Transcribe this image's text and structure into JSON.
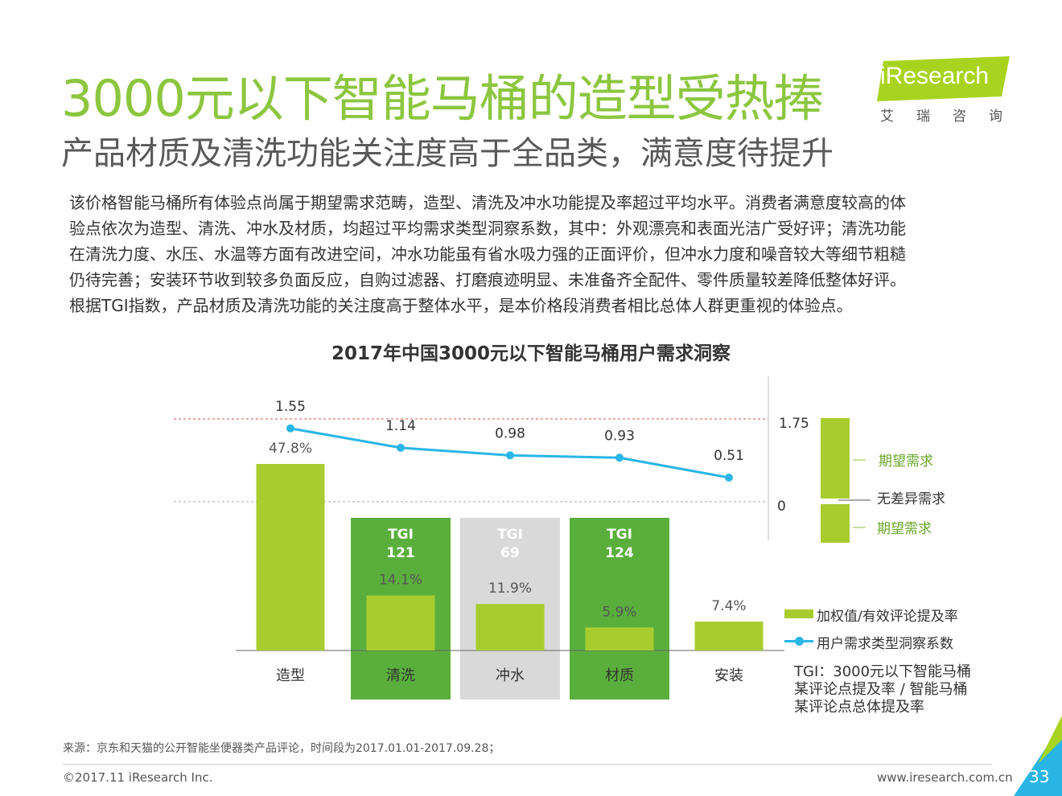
{
  "header": {
    "title": "3000元以下智能马桶的造型受热捧",
    "subtitle": "产品材质及清洗功能关注度高于全品类，满意度待提升",
    "logo_brand": "iResearch",
    "logo_cn": "艾瑞咨询"
  },
  "description": [
    "该价格智能马桶所有体验点尚属于期望需求范畴，造型、清洗及冲水功能提及率超过平均水平。消费者满意度较高的体",
    "验点依次为造型、清洗、冲水及材质，均超过平均需求类型洞察系数，其中：外观漂亮和表面光洁广受好评；清洗功能",
    "在清洗力度、水压、水温等方面有改进空间，冲水功能虽有省水吸力强的正面评价，但冲水力度和噪音较大等细节粗糙",
    "仍待完善；安装环节收到较多负面反应，自购过滤器、打磨痕迹明显、未准备齐全配件、零件质量较差降低整体好评。",
    "根据TGI指数，产品材质及清洗功能的关注度高于整体水平，是本价格段消费者相比总体人群更重视的体验点。"
  ],
  "chart_data": {
    "type": "bar",
    "title": "2017年中国3000元以下智能马桶用户需求洞察",
    "categories": [
      "造型",
      "清洗",
      "冲水",
      "材质",
      "安装"
    ],
    "series": [
      {
        "name": "加权值/有效评论提及率",
        "type": "bar",
        "values": [
          47.8,
          14.1,
          11.9,
          5.9,
          7.4
        ],
        "labels": [
          "47.8%",
          "14.1%",
          "11.9%",
          "5.9%",
          "7.4%"
        ]
      },
      {
        "name": "用户需求类型洞察系数",
        "type": "line",
        "values": [
          1.55,
          1.14,
          0.98,
          0.93,
          0.51
        ],
        "labels": [
          "1.55",
          "1.14",
          "0.98",
          "0.93",
          "0.51"
        ]
      }
    ],
    "tgi": [
      {
        "category": "清洗",
        "label": "TGI",
        "value": "121",
        "color": "#5aaf3c"
      },
      {
        "category": "冲水",
        "label": "TGI",
        "value": "69",
        "color": "#d9d9d9"
      },
      {
        "category": "材质",
        "label": "TGI",
        "value": "124",
        "color": "#5aaf3c"
      }
    ],
    "reference_lines": [
      {
        "value": 1.75,
        "label": "1.75",
        "style": "dashed",
        "color": "#e05050"
      },
      {
        "value": 0,
        "label": "0",
        "style": "dashed",
        "color": "#aaaaaa"
      }
    ],
    "scale_legend": {
      "upper": "期望需求",
      "middle": "无差异需求",
      "lower": "期望需求"
    },
    "ylim_bar": [
      0,
      60
    ],
    "ylim_line": [
      0,
      1.75
    ],
    "note": [
      "TGI：3000元以下智能马桶",
      "某评论点提及率 / 智能马桶",
      "某评论点总体提及率"
    ]
  },
  "colors": {
    "title_green": "#8cc63f",
    "bar_green": "#a8cc2e",
    "tgi_green": "#5aaf3c",
    "tgi_gray": "#d9d9d9",
    "line_blue": "#29b6e6"
  },
  "footer": {
    "source": "来源：京东和天猫的公开智能坐便器类产品评论，时间段为2017.01.01-2017.09.28；",
    "copyright": "©2017.11 iResearch Inc.",
    "website": "www.iresearch.com.cn",
    "page": "33"
  }
}
